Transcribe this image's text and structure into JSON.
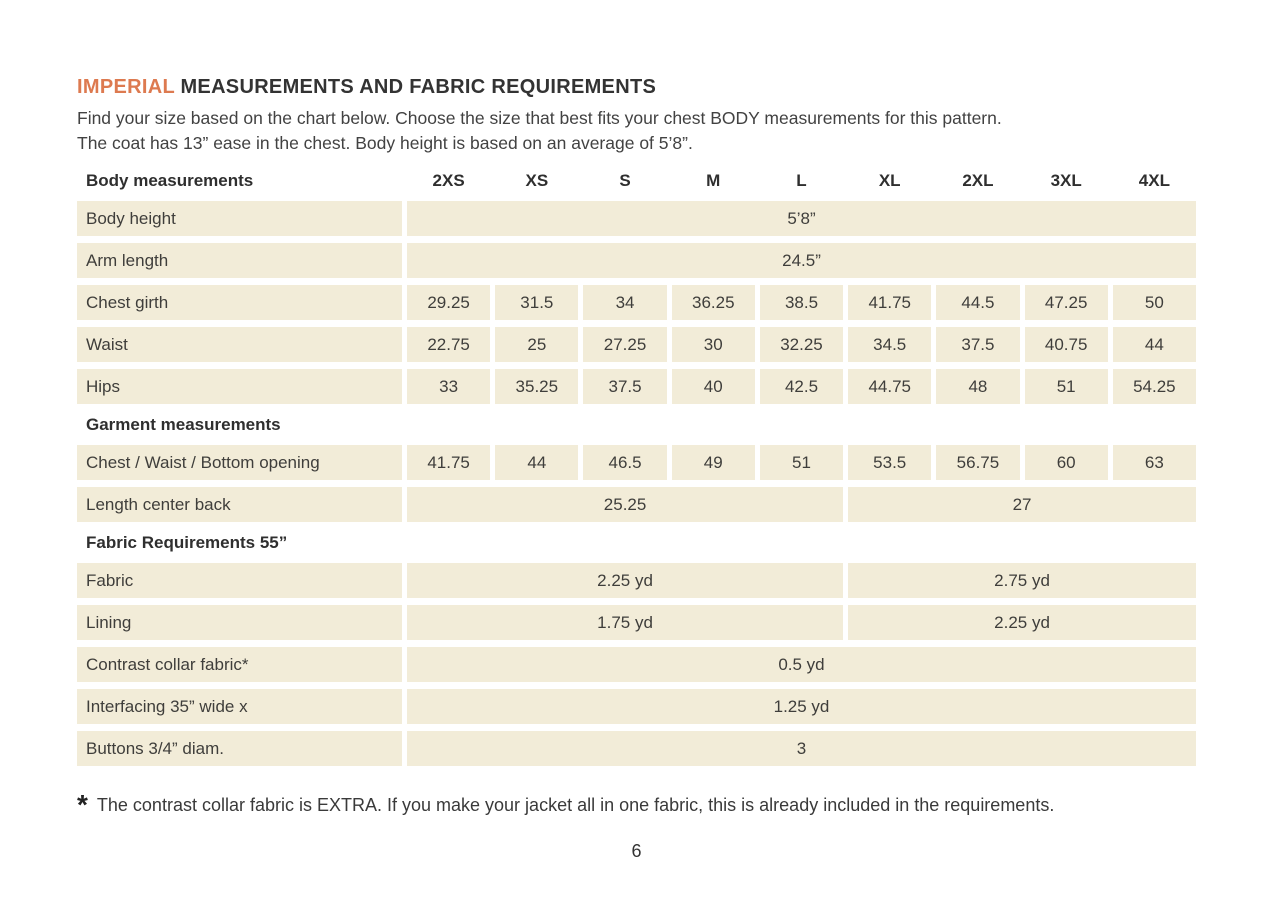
{
  "page": {
    "title": {
      "highlight": "IMPERIAL",
      "rest": " MEASUREMENTS AND FABRIC REQUIREMENTS"
    },
    "intro_line1": "Find your size based on the chart below. Choose the size that best fits your chest BODY measurements for this pattern.",
    "intro_line2": "The coat has 13” ease in the chest. Body height is based on an average of 5’8”.",
    "footnote": {
      "marker": "*",
      "text": "The contrast collar fabric is EXTRA. If you make your jacket all in one fabric, this is already included in the requirements."
    },
    "page_number": "6"
  },
  "colors": {
    "accent_orange": "#dd7a50",
    "cell_fill": "#f2ecd8",
    "text_dark": "#3d3c3a"
  },
  "table": {
    "header_label": "Body measurements",
    "sizes": [
      "2XS",
      "XS",
      "S",
      "M",
      "L",
      "XL",
      "2XL",
      "3XL",
      "4XL"
    ],
    "rows": [
      {
        "label": "Body height",
        "value": "5’8”"
      },
      {
        "label": "Arm length",
        "value": "24.5”"
      },
      {
        "label": "Chest girth",
        "values": [
          "29.25",
          "31.5",
          "34",
          "36.25",
          "38.5",
          "41.75",
          "44.5",
          "47.25",
          "50"
        ]
      },
      {
        "label": "Waist",
        "values": [
          "22.75",
          "25",
          "27.25",
          "30",
          "32.25",
          "34.5",
          "37.5",
          "40.75",
          "44"
        ]
      },
      {
        "label": "Hips",
        "values": [
          "33",
          "35.25",
          "37.5",
          "40",
          "42.5",
          "44.75",
          "48",
          "51",
          "54.25"
        ]
      },
      {
        "label": "Garment measurements"
      },
      {
        "label": "Chest / Waist / Bottom opening",
        "values": [
          "41.75",
          "44",
          "46.5",
          "49",
          "51",
          "53.5",
          "56.75",
          "60",
          "63"
        ]
      },
      {
        "label": "Length center back",
        "value_left": "25.25",
        "value_right": "27"
      },
      {
        "label": "Fabric Requirements 55”"
      },
      {
        "label": "Fabric",
        "value_left": "2.25 yd",
        "value_right": "2.75 yd"
      },
      {
        "label": "Lining",
        "value_left": "1.75 yd",
        "value_right": "2.25 yd"
      },
      {
        "label": "Contrast collar fabric*",
        "value": "0.5 yd"
      },
      {
        "label": "Interfacing  35” wide x",
        "value": "1.25 yd"
      },
      {
        "label": "Buttons 3/4” diam.",
        "value": "3"
      }
    ]
  }
}
